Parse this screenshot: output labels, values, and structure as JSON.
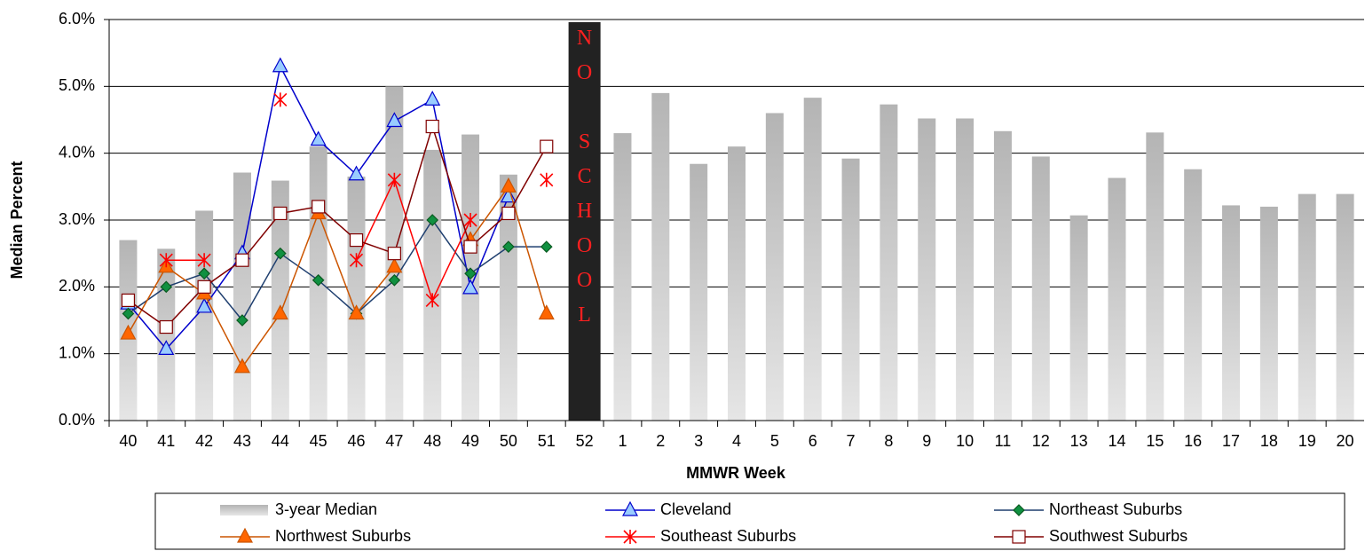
{
  "chart_data": {
    "type": "bar-line",
    "y_label": "Median Percent",
    "x_label": "MMWR Week",
    "annotation": "NO SCHOOL",
    "categories": [
      "40",
      "41",
      "42",
      "43",
      "44",
      "45",
      "46",
      "47",
      "48",
      "49",
      "50",
      "51",
      "52",
      "1",
      "2",
      "3",
      "4",
      "5",
      "6",
      "7",
      "8",
      "9",
      "10",
      "11",
      "12",
      "13",
      "14",
      "15",
      "16",
      "17",
      "18",
      "19",
      "20"
    ],
    "ylim": [
      0,
      6
    ],
    "yticks": [
      {
        "value": 0,
        "label": "0.0%"
      },
      {
        "value": 1,
        "label": "1.0%"
      },
      {
        "value": 2,
        "label": "2.0%"
      },
      {
        "value": 3,
        "label": "3.0%"
      },
      {
        "value": 4,
        "label": "4.0%"
      },
      {
        "value": 5,
        "label": "5.0%"
      },
      {
        "value": 6,
        "label": "6.0%"
      }
    ],
    "grid": true,
    "bars": {
      "name": "3-year Median",
      "color": "#b4b4b4",
      "values": [
        2.7,
        2.57,
        3.14,
        3.71,
        3.59,
        4.1,
        3.65,
        5.0,
        4.05,
        4.28,
        3.68,
        null,
        null,
        4.3,
        4.9,
        3.84,
        4.1,
        4.6,
        4.83,
        3.92,
        4.73,
        4.52,
        4.52,
        4.33,
        3.95,
        3.07,
        3.63,
        4.31,
        3.76,
        3.22,
        3.2,
        3.39,
        3.39
      ]
    },
    "series": [
      {
        "name": "Cleveland",
        "color": "#0000cc",
        "marker": "triangle",
        "marker_fill": "#99ccff",
        "values": [
          1.75,
          1.07,
          1.7,
          2.5,
          5.3,
          4.2,
          3.68,
          4.48,
          4.8,
          1.98,
          3.35,
          null,
          null,
          null,
          null,
          null,
          null,
          null,
          null,
          null,
          null,
          null,
          null,
          null,
          null,
          null,
          null,
          null,
          null,
          null,
          null,
          null,
          null
        ]
      },
      {
        "name": "Northeast Suburbs",
        "color": "#1f3f6f",
        "marker": "diamond",
        "marker_fill": "#109040",
        "values": [
          1.6,
          2.0,
          2.2,
          1.5,
          2.5,
          2.1,
          1.6,
          2.1,
          3.0,
          2.2,
          2.6,
          2.6,
          null,
          null,
          null,
          null,
          null,
          null,
          null,
          null,
          null,
          null,
          null,
          null,
          null,
          null,
          null,
          null,
          null,
          null,
          null,
          null,
          null
        ]
      },
      {
        "name": "Northwest Suburbs",
        "color": "#cc5500",
        "marker": "triangle",
        "marker_fill": "#ff6600",
        "values": [
          1.3,
          2.3,
          1.9,
          0.8,
          1.6,
          3.1,
          1.6,
          2.3,
          null,
          2.7,
          3.5,
          1.6,
          null,
          null,
          null,
          null,
          null,
          null,
          null,
          null,
          null,
          null,
          null,
          null,
          null,
          null,
          null,
          null,
          null,
          null,
          null,
          null,
          null
        ]
      },
      {
        "name": "Southeast Suburbs",
        "color": "#ff0000",
        "marker": "asterisk",
        "marker_fill": "#ff0000",
        "values": [
          null,
          2.4,
          2.4,
          null,
          4.8,
          null,
          2.4,
          3.6,
          1.8,
          3.0,
          null,
          3.6,
          null,
          null,
          null,
          null,
          null,
          null,
          null,
          null,
          null,
          null,
          null,
          null,
          null,
          null,
          null,
          null,
          null,
          null,
          null,
          null,
          null
        ]
      },
      {
        "name": "Southwest Suburbs",
        "color": "#800000",
        "marker": "square",
        "marker_fill": "#ffffff",
        "values": [
          1.8,
          1.4,
          2.0,
          2.4,
          3.1,
          3.2,
          2.7,
          2.5,
          4.4,
          2.6,
          3.1,
          4.1,
          null,
          null,
          null,
          null,
          null,
          null,
          null,
          null,
          null,
          null,
          null,
          null,
          null,
          null,
          null,
          null,
          null,
          null,
          null,
          null,
          null
        ]
      }
    ]
  }
}
